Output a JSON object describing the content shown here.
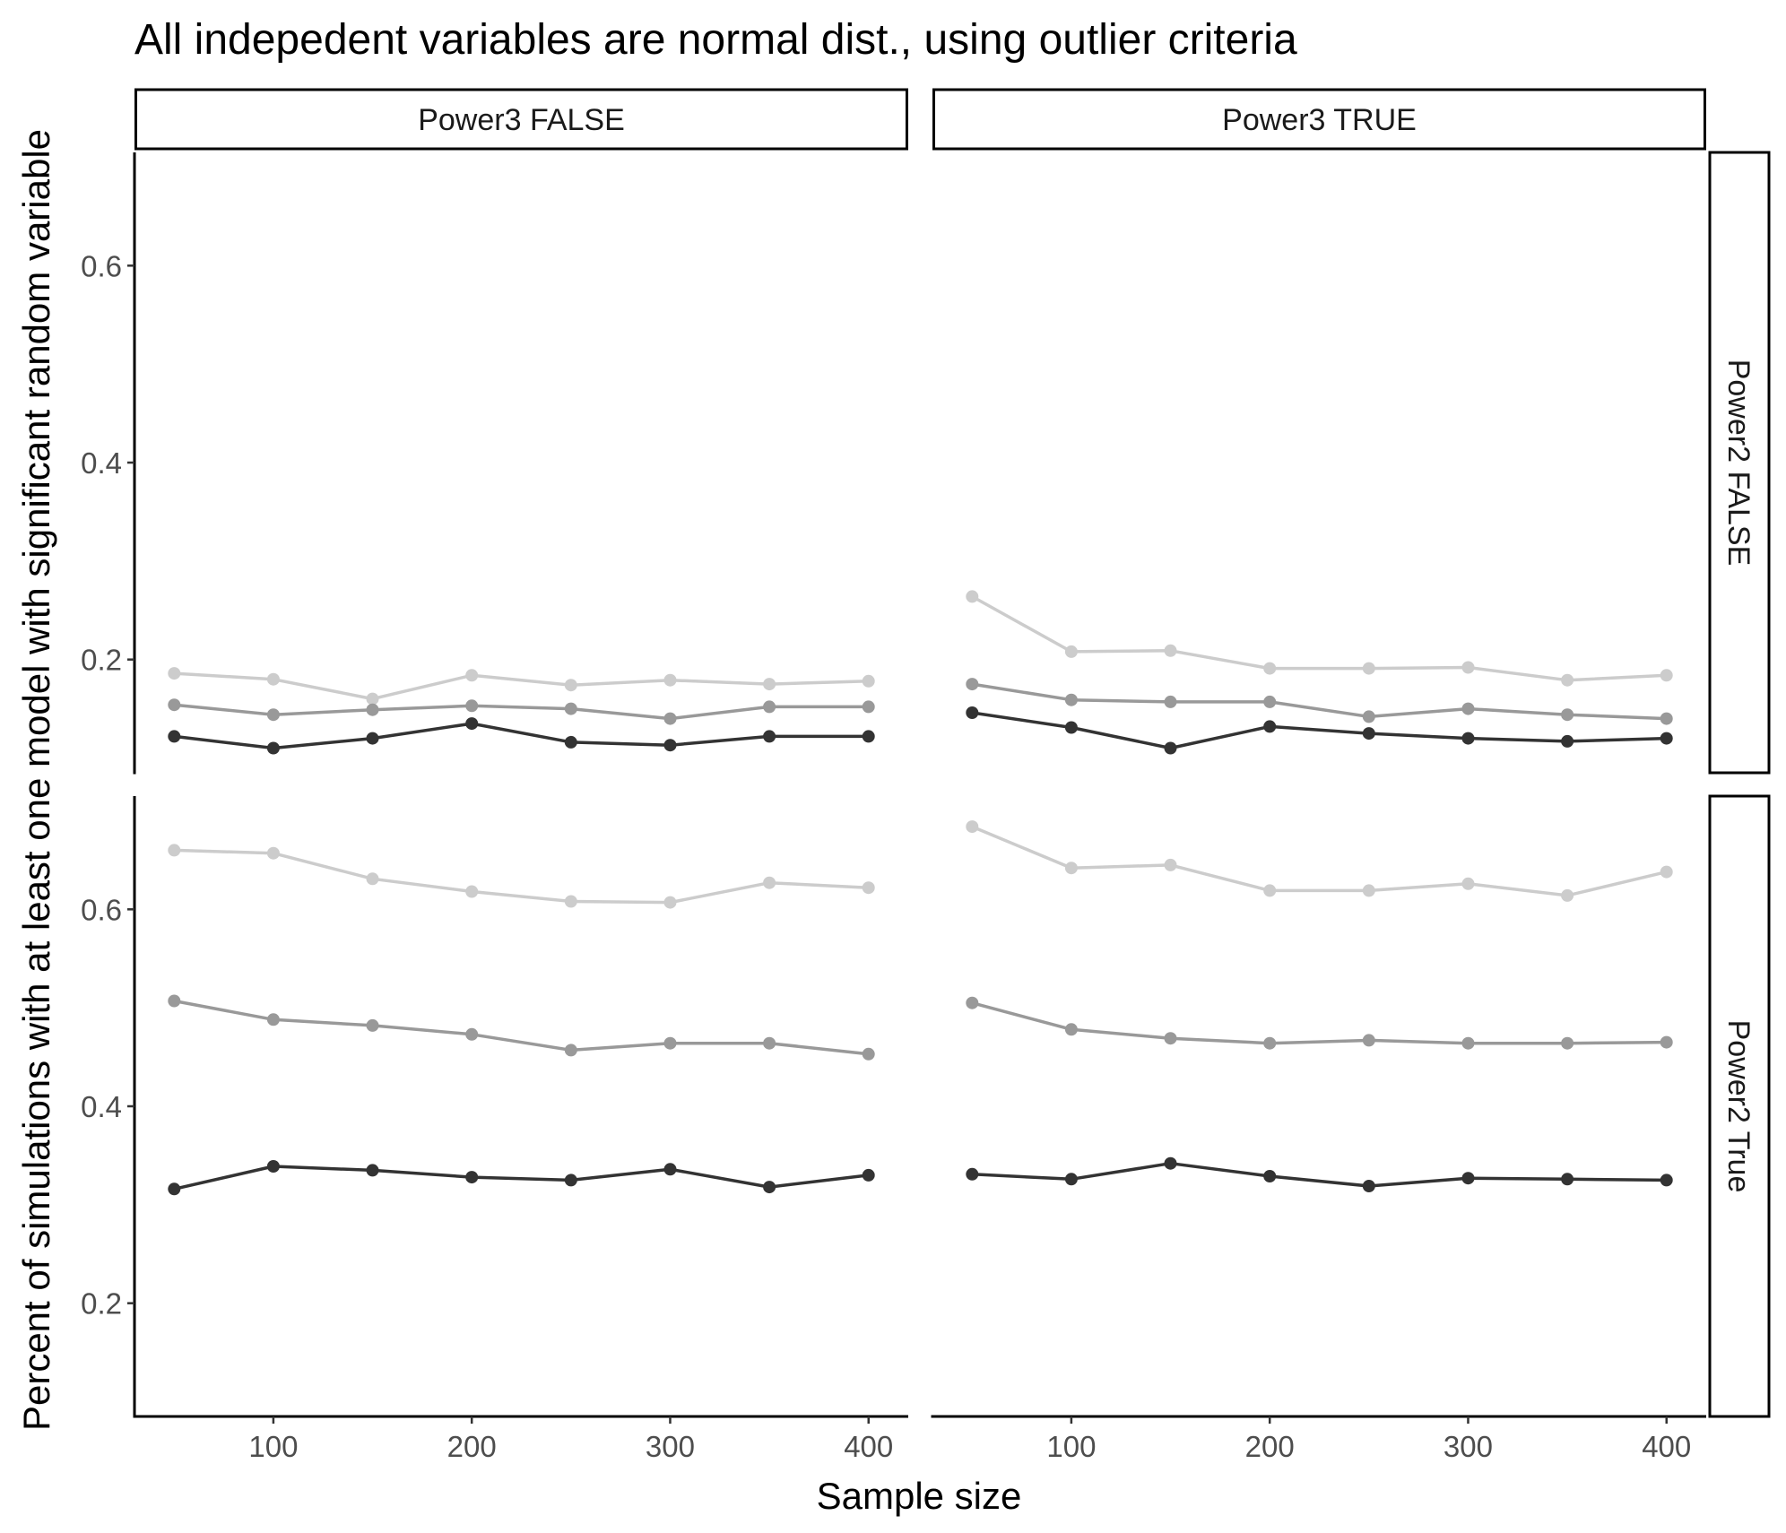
{
  "chart_data": {
    "type": "line",
    "title": "All indepedent variables are normal dist., using outlier criteria",
    "xlabel": "Sample size",
    "ylabel": "Percent of simulations with at least one model with significant random variable",
    "x": [
      50,
      100,
      150,
      200,
      250,
      300,
      350,
      400
    ],
    "x_ticks": [
      100,
      200,
      300,
      400
    ],
    "x_tick_labels": [
      "100",
      "200",
      "300",
      "400"
    ],
    "xlim": [
      30,
      420
    ],
    "y_ticks": [
      0.2,
      0.4,
      0.6
    ],
    "y_tick_labels": [
      "0.2",
      "0.4",
      "0.6"
    ],
    "ylim": [
      0.085,
      0.715
    ],
    "grid": false,
    "legend": "none",
    "series_colors": [
      "#cccccc",
      "#999999",
      "#333333"
    ],
    "facet_columns": [
      "Power3 FALSE",
      "Power3 TRUE"
    ],
    "facet_rows": [
      "Power2 FALSE",
      "Power2 True"
    ],
    "panels": [
      {
        "col": "Power3 FALSE",
        "row": "Power2 FALSE",
        "series": [
          {
            "values": [
              0.186,
              0.18,
              0.16,
              0.184,
              0.174,
              0.179,
              0.175,
              0.178
            ]
          },
          {
            "values": [
              0.154,
              0.144,
              0.149,
              0.153,
              0.15,
              0.14,
              0.152,
              0.152
            ]
          },
          {
            "values": [
              0.122,
              0.11,
              0.12,
              0.135,
              0.116,
              0.113,
              0.122,
              0.122
            ]
          }
        ]
      },
      {
        "col": "Power3 TRUE",
        "row": "Power2 FALSE",
        "series": [
          {
            "values": [
              0.264,
              0.208,
              0.209,
              0.191,
              0.191,
              0.192,
              0.179,
              0.184
            ]
          },
          {
            "values": [
              0.175,
              0.159,
              0.157,
              0.157,
              0.142,
              0.15,
              0.144,
              0.14
            ]
          },
          {
            "values": [
              0.146,
              0.131,
              0.11,
              0.132,
              0.125,
              0.12,
              0.117,
              0.12
            ]
          }
        ]
      },
      {
        "col": "Power3 FALSE",
        "row": "Power2 True",
        "series": [
          {
            "values": [
              0.66,
              0.657,
              0.631,
              0.618,
              0.608,
              0.607,
              0.627,
              0.622
            ]
          },
          {
            "values": [
              0.507,
              0.488,
              0.482,
              0.473,
              0.457,
              0.464,
              0.464,
              0.453
            ]
          },
          {
            "values": [
              0.316,
              0.339,
              0.335,
              0.328,
              0.325,
              0.336,
              0.318,
              0.33
            ]
          }
        ]
      },
      {
        "col": "Power3 TRUE",
        "row": "Power2 True",
        "series": [
          {
            "values": [
              0.684,
              0.642,
              0.645,
              0.619,
              0.619,
              0.626,
              0.614,
              0.638
            ]
          },
          {
            "values": [
              0.505,
              0.478,
              0.469,
              0.464,
              0.467,
              0.464,
              0.464,
              0.465
            ]
          },
          {
            "values": [
              0.331,
              0.326,
              0.342,
              0.329,
              0.319,
              0.327,
              0.326,
              0.325
            ]
          }
        ]
      }
    ]
  }
}
